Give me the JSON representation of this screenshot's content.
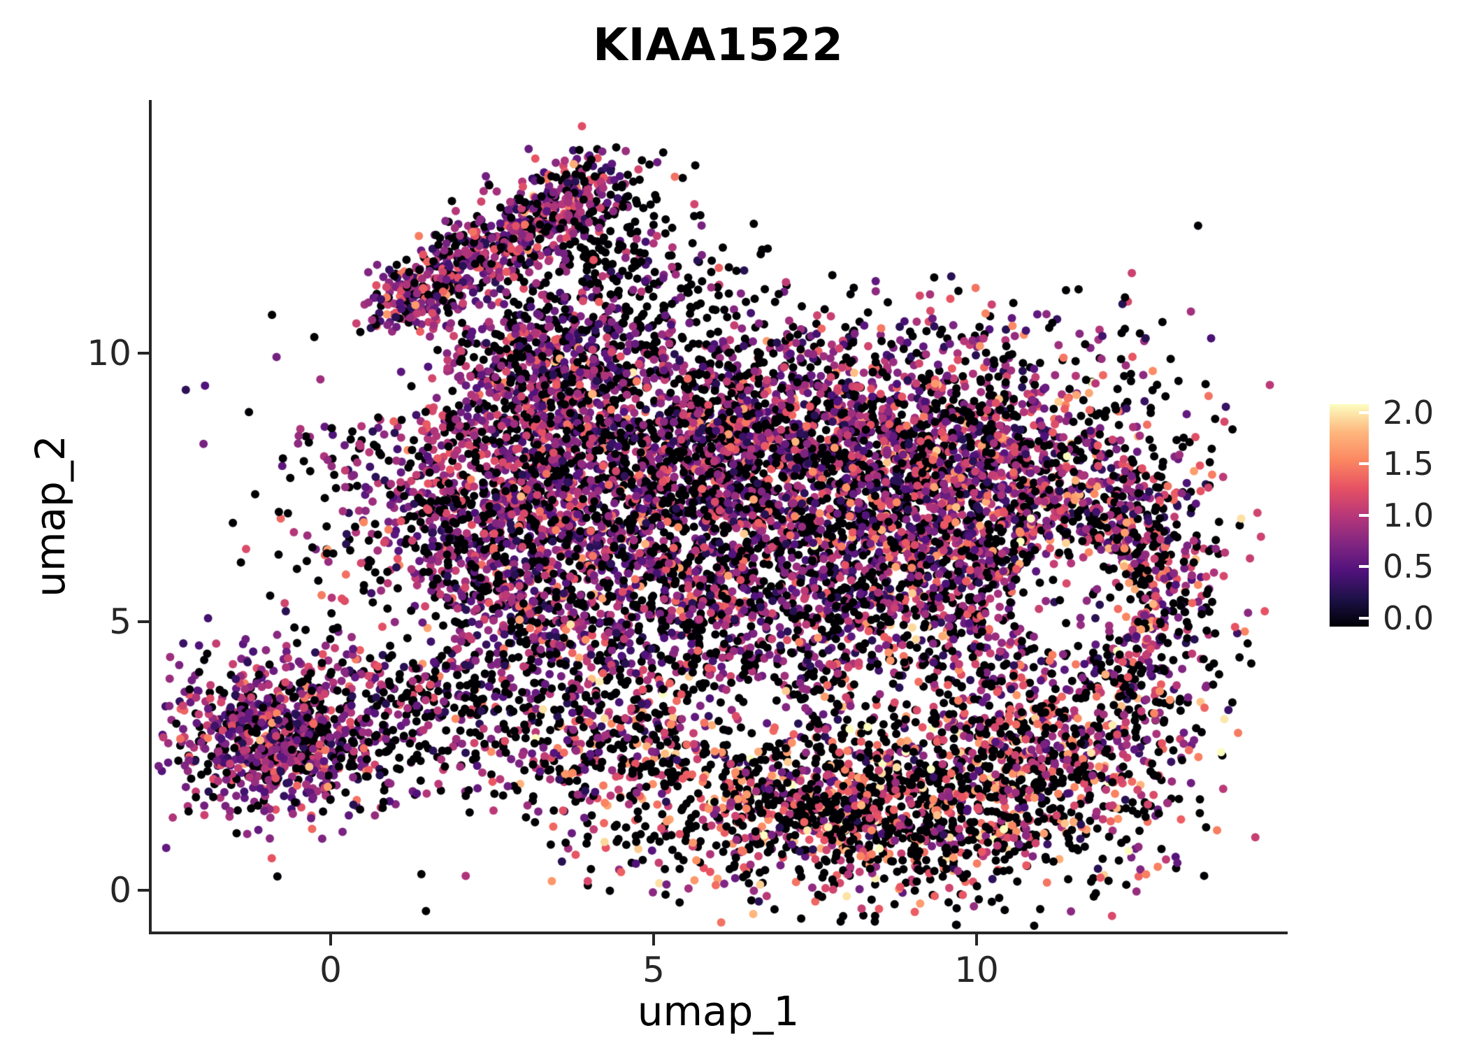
{
  "chart_data": {
    "type": "scatter",
    "title": "KIAA1522",
    "xlabel": "umap_1",
    "ylabel": "umap_2",
    "xlim": [
      -2.77,
      14.82
    ],
    "ylim": [
      -0.77,
      14.71
    ],
    "x_ticks": [
      0,
      5,
      10
    ],
    "x_tick_labels": [
      "0",
      "5",
      "10"
    ],
    "y_ticks": [
      10,
      5,
      0
    ],
    "y_tick_labels": [
      "10",
      "5",
      "0"
    ],
    "grid": false,
    "background": "#FFFFFF",
    "legend_position": "right",
    "colorbar": {
      "title": "",
      "domain": [
        0,
        2
      ],
      "tick_labels": [
        "2.0",
        "1.5",
        "1.0",
        "0.5",
        "0.0"
      ],
      "colormap_name": "magma",
      "stops": [
        [
          0,
          "#000004"
        ],
        [
          0.125,
          "#1D1147"
        ],
        [
          0.25,
          "#51127C"
        ],
        [
          0.375,
          "#822681"
        ],
        [
          0.5,
          "#B73779"
        ],
        [
          0.625,
          "#E75263"
        ],
        [
          0.75,
          "#FB8861"
        ],
        [
          0.875,
          "#FEB77E"
        ],
        [
          1,
          "#FCFDBF"
        ]
      ]
    },
    "point_radius_px": 6,
    "seed": 20,
    "clusters": [
      {
        "name": "arm",
        "kind": "line",
        "from": [
          0.95,
          10.75
        ],
        "to": [
          4.25,
          13.3
        ],
        "width": 0.34,
        "n": 700,
        "p0": 0.26,
        "vmean": 0.85,
        "vsd": 0.35
      },
      {
        "name": "arm-tip-sparse",
        "kind": "gauss",
        "center": [
          4.35,
          11.6
        ],
        "sd": [
          0.75,
          0.95
        ],
        "n": 230,
        "p0": 0.7,
        "vmean": 0.8,
        "vsd": 0.35
      },
      {
        "name": "arm-east-sparse",
        "kind": "gauss",
        "center": [
          5.3,
          11.1
        ],
        "sd": [
          0.85,
          0.75
        ],
        "n": 110,
        "p0": 0.85,
        "vmean": 0.7,
        "vsd": 0.3
      },
      {
        "name": "neck",
        "kind": "gauss",
        "center": [
          3.2,
          9.9
        ],
        "sd": [
          0.75,
          0.6
        ],
        "n": 330,
        "p0": 0.35,
        "vmean": 0.8,
        "vsd": 0.32
      },
      {
        "name": "main-upper",
        "kind": "gauss",
        "center": [
          6.4,
          8.5
        ],
        "sd": [
          2.5,
          1.05
        ],
        "n": 2300,
        "p0": 0.38,
        "vmean": 0.82,
        "vsd": 0.35
      },
      {
        "name": "main-left",
        "kind": "gauss",
        "center": [
          2.7,
          6.9
        ],
        "sd": [
          1.3,
          1.5
        ],
        "n": 1250,
        "p0": 0.32,
        "vmean": 0.85,
        "vsd": 0.32
      },
      {
        "name": "main-mid",
        "kind": "gauss",
        "center": [
          6.2,
          5.8
        ],
        "sd": [
          2.6,
          1.5
        ],
        "n": 2400,
        "p0": 0.44,
        "vmean": 0.78,
        "vsd": 0.36
      },
      {
        "name": "main-right",
        "kind": "gauss",
        "center": [
          10.1,
          7.0
        ],
        "sd": [
          1.5,
          1.5
        ],
        "n": 1600,
        "p0": 0.36,
        "vmean": 0.9,
        "vsd": 0.4
      },
      {
        "name": "right-edge",
        "kind": "gauss",
        "center": [
          12.5,
          5.5
        ],
        "sd": [
          0.65,
          1.9
        ],
        "n": 650,
        "p0": 0.45,
        "vmean": 0.95,
        "vsd": 0.45
      },
      {
        "name": "bottom-band",
        "kind": "gauss",
        "center": [
          8.2,
          1.5
        ],
        "sd": [
          2.0,
          0.85
        ],
        "n": 1550,
        "p0": 0.56,
        "vmean": 1.2,
        "vsd": 0.4
      },
      {
        "name": "bottom-right",
        "kind": "gauss",
        "center": [
          10.9,
          2.7
        ],
        "sd": [
          0.95,
          0.85
        ],
        "n": 480,
        "p0": 0.5,
        "vmean": 1.05,
        "vsd": 0.4
      },
      {
        "name": "mid-bottom",
        "kind": "gauss",
        "center": [
          4.8,
          2.9
        ],
        "sd": [
          1.3,
          0.8
        ],
        "n": 330,
        "p0": 0.52,
        "vmean": 1.05,
        "vsd": 0.45
      },
      {
        "name": "bottom-left-cluster",
        "kind": "gauss",
        "center": [
          -0.85,
          2.9
        ],
        "sd": [
          0.8,
          0.72
        ],
        "n": 850,
        "p0": 0.28,
        "vmean": 0.8,
        "vsd": 0.32
      },
      {
        "name": "bridge",
        "kind": "gauss",
        "center": [
          1.7,
          3.3
        ],
        "sd": [
          0.95,
          0.75
        ],
        "n": 260,
        "p0": 0.6,
        "vmean": 0.75,
        "vsd": 0.35
      }
    ],
    "holes": [
      {
        "center": [
          11.5,
          5.4
        ],
        "rx": 0.95,
        "ry": 1.05,
        "keep": 0.2
      },
      {
        "center": [
          6.3,
          3.2
        ],
        "rx": 0.85,
        "ry": 0.65,
        "keep": 0.3
      },
      {
        "center": [
          0.9,
          9.6
        ],
        "rx": 0.9,
        "ry": 0.8,
        "keep": 0.1
      },
      {
        "center": [
          1.1,
          4.9
        ],
        "rx": 0.8,
        "ry": 0.7,
        "keep": 0.25
      }
    ]
  }
}
